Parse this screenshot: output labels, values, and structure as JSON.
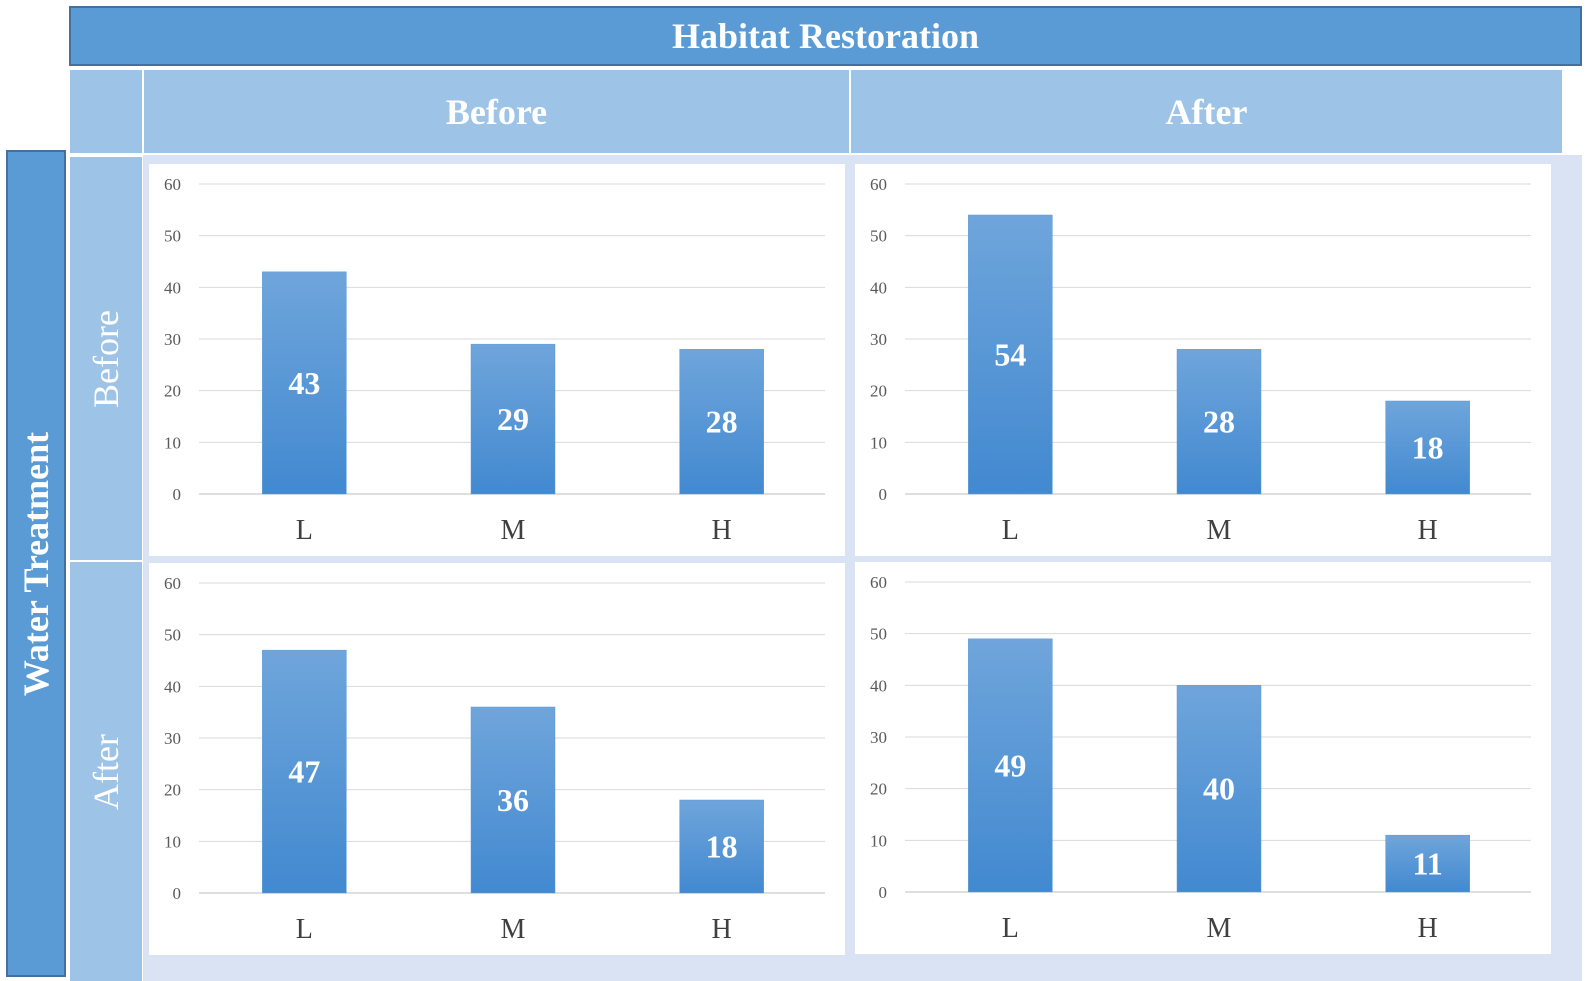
{
  "header": {
    "column_factor": "Habitat Restoration",
    "row_factor": "Water Treatment",
    "column_levels": [
      "Before",
      "After"
    ],
    "row_levels": [
      "Before",
      "After"
    ]
  },
  "colors": {
    "header_fill": "#5b9bd5",
    "subheader_fill": "#9dc3e6",
    "bar_fill_top": "#6fa5db",
    "bar_fill_bottom": "#4289d0",
    "gridline": "#d9d9d9"
  },
  "chart_data": [
    {
      "type": "bar",
      "panel": "water-before-habitat-before",
      "categories": [
        "L",
        "M",
        "H"
      ],
      "values": [
        43,
        29,
        28
      ],
      "yticks": [
        "0",
        "10",
        "20",
        "30",
        "40",
        "50",
        "60"
      ],
      "ylim": [
        0,
        60
      ],
      "data_labels": [
        "43",
        "29",
        "28"
      ],
      "grid": true
    },
    {
      "type": "bar",
      "panel": "water-before-habitat-after",
      "categories": [
        "L",
        "M",
        "H"
      ],
      "values": [
        54,
        28,
        18
      ],
      "yticks": [
        "0",
        "10",
        "20",
        "30",
        "40",
        "50",
        "60"
      ],
      "ylim": [
        0,
        60
      ],
      "data_labels": [
        "54",
        "28",
        "18"
      ],
      "grid": true
    },
    {
      "type": "bar",
      "panel": "water-after-habitat-before",
      "categories": [
        "L",
        "M",
        "H"
      ],
      "values": [
        47,
        36,
        18
      ],
      "yticks": [
        "0",
        "10",
        "20",
        "30",
        "40",
        "50",
        "60"
      ],
      "ylim": [
        0,
        60
      ],
      "data_labels": [
        "47",
        "36",
        "18"
      ],
      "grid": true
    },
    {
      "type": "bar",
      "panel": "water-after-habitat-after",
      "categories": [
        "L",
        "M",
        "H"
      ],
      "values": [
        49,
        40,
        11
      ],
      "yticks": [
        "0",
        "10",
        "20",
        "30",
        "40",
        "50",
        "60"
      ],
      "ylim": [
        0,
        60
      ],
      "data_labels": [
        "49",
        "40",
        "11"
      ],
      "grid": true
    }
  ]
}
